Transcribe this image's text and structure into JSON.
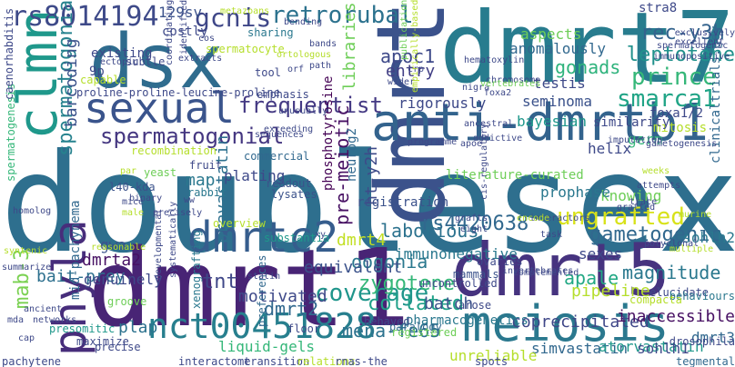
{
  "palette": [
    "#440154",
    "#482878",
    "#3e4989",
    "#31688e",
    "#26828e",
    "#1f9e89",
    "#35b779",
    "#6ece58",
    "#b5de2b",
    "#fde725"
  ],
  "words": [
    {
      "text": "doublesex",
      "color": "#2e6f8e"
    },
    {
      "text": "dmrt1",
      "color": "#482475"
    },
    {
      "text": "dmrt7",
      "color": "#287c8e"
    },
    {
      "text": "dsx",
      "color": "#2f6c8e"
    },
    {
      "text": "dmrt5",
      "color": "#46337f"
    },
    {
      "text": "dmrt",
      "color": "#3b528b"
    },
    {
      "text": "anti-dmrtb1",
      "color": "#33638d"
    },
    {
      "text": "meiosis",
      "color": "#2a788e"
    },
    {
      "text": "sexual",
      "color": "#3a548c"
    },
    {
      "text": "clmn",
      "color": "#1f988b"
    },
    {
      "text": "phyla",
      "color": "#472d7b"
    },
    {
      "text": "dmrtc2",
      "color": "#365d8d"
    },
    {
      "text": "nct00451828",
      "color": "#277f8e"
    },
    {
      "text": "rs8014194",
      "color": "#3e4a89"
    },
    {
      "text": "gcnis",
      "color": "#3f4788"
    },
    {
      "text": "retrorubal",
      "color": "#2c728e"
    },
    {
      "text": "prince",
      "color": "#35b779"
    },
    {
      "text": "smarca1",
      "color": "#20a486"
    },
    {
      "text": "ungrafted",
      "color": "#d8e219"
    },
    {
      "text": "coverage",
      "color": "#1f958b"
    },
    {
      "text": "frequentist",
      "color": "#443983"
    },
    {
      "text": "spermatogonial",
      "color": "#453781"
    },
    {
      "text": "mab-3",
      "color": "#7ad151"
    },
    {
      "text": "leptotene",
      "color": "#21918c"
    },
    {
      "text": "rec-y3h",
      "color": "#33638d"
    },
    {
      "text": "spermatogonia",
      "color": "#26828e"
    },
    {
      "text": "129sv",
      "color": "#3b528b"
    },
    {
      "text": "apoc1",
      "color": "#3e4989"
    },
    {
      "text": "entry",
      "color": "#423f85"
    },
    {
      "text": "gonads",
      "color": "#2eb37c"
    },
    {
      "text": "zygotene",
      "color": "#35b779"
    },
    {
      "text": "gametogenic",
      "color": "#31688e"
    },
    {
      "text": "pre-meiotic",
      "color": "#471063"
    },
    {
      "text": "pravastatin",
      "color": "#2d708e"
    },
    {
      "text": "rs4420638",
      "color": "#31688e"
    },
    {
      "text": "laborious",
      "color": "#2c728e"
    },
    {
      "text": "collated",
      "color": "#1fa088"
    },
    {
      "text": "apale",
      "color": "#22a884"
    },
    {
      "text": "magnitude",
      "color": "#2a788e"
    },
    {
      "text": "plap",
      "color": "#2c728e"
    },
    {
      "text": "mena-fe65",
      "color": "#2c728e"
    },
    {
      "text": "tnt",
      "color": "#3f4788"
    },
    {
      "text": "dmrt2",
      "color": "#31688e"
    },
    {
      "text": "barcoding",
      "color": "#3b528b"
    },
    {
      "text": "ht-y2h",
      "color": "#3e4a89"
    },
    {
      "text": "dmrta2",
      "color": "#471164"
    },
    {
      "text": "bait-prey",
      "color": "#2d708e"
    },
    {
      "text": "dmrt4",
      "color": "#c2df23"
    },
    {
      "text": "oogonia",
      "color": "#2a788e"
    },
    {
      "text": "genuinely",
      "color": "#3e4989"
    },
    {
      "text": "equivalent",
      "color": "#3b528b"
    },
    {
      "text": "immunonegative",
      "color": "#2a788e"
    },
    {
      "text": "sexes",
      "color": "#3e4989"
    },
    {
      "text": "pipeline",
      "color": "#b5de2b"
    },
    {
      "text": "motivated",
      "color": "#3e4989"
    },
    {
      "text": "mid-pachynema",
      "color": "#31688e"
    },
    {
      "text": "liquid-gels",
      "color": "#35b779"
    },
    {
      "text": "batch",
      "color": "#3b528b"
    },
    {
      "text": "coprecipitated",
      "color": "#3f4788"
    },
    {
      "text": "inaccessible",
      "color": "#471063"
    },
    {
      "text": "pharmacogenetics",
      "color": "#2a788e"
    },
    {
      "text": "simvastatin",
      "color": "#31688e"
    },
    {
      "text": "atorvastatin",
      "color": "#1f988b"
    },
    {
      "text": "unreliable",
      "color": "#b5de2b"
    },
    {
      "text": "sohlh2",
      "color": "#2a788e"
    },
    {
      "text": "sohlh1",
      "color": "#3e4989"
    },
    {
      "text": "dmrt3",
      "color": "#31688e"
    },
    {
      "text": "gwa",
      "color": "#3b528b"
    },
    {
      "text": "testis",
      "color": "#3e4989"
    },
    {
      "text": "seminoma",
      "color": "#3b528b"
    },
    {
      "text": "germ",
      "color": "#35b779"
    },
    {
      "text": "helix",
      "color": "#3e4989"
    },
    {
      "text": "foxa1/2",
      "color": "#3e4989"
    },
    {
      "text": "mitosis",
      "color": "#b5de2b"
    },
    {
      "text": "similarity",
      "color": "#3e4989"
    },
    {
      "text": "bayesian",
      "color": "#1f988b"
    },
    {
      "text": "knowing",
      "color": "#6ece58"
    },
    {
      "text": "prophase",
      "color": "#2a788e"
    },
    {
      "text": "clinicaltrials.gov",
      "color": "#31688e"
    },
    {
      "text": "aspects",
      "color": "#6ece58"
    },
    {
      "text": "anomalously",
      "color": "#31688e"
    },
    {
      "text": "libraries",
      "color": "#6ece58"
    },
    {
      "text": "map",
      "color": "#2a788e"
    },
    {
      "text": "plating",
      "color": "#3e4989"
    },
    {
      "text": "rigorously",
      "color": "#3e4989"
    },
    {
      "text": "literature-curated",
      "color": "#6ece58"
    },
    {
      "text": "registration",
      "color": "#3b528b"
    },
    {
      "text": "neurog2",
      "color": "#31688e"
    },
    {
      "text": "phosphotyrosine",
      "color": "#440154"
    },
    {
      "text": "stra8",
      "color": "#3e4989"
    },
    {
      "text": "existing",
      "color": "#3e4989"
    },
    {
      "text": "costly",
      "color": "#3e4989"
    },
    {
      "text": "sharing",
      "color": "#2a788e"
    },
    {
      "text": "spermatocyte",
      "color": "#b5de2b"
    },
    {
      "text": "9p",
      "color": "#3e4989"
    },
    {
      "text": "spermatogenesis",
      "color": "#35b779"
    },
    {
      "text": "recombination",
      "color": "#b5de2b"
    },
    {
      "text": "l40-kda",
      "color": "#3b528b"
    },
    {
      "text": "rabbit",
      "color": "#2a788e"
    },
    {
      "text": "yeast",
      "color": "#6ece58"
    },
    {
      "text": "fruit",
      "color": "#3e4989"
    },
    {
      "text": "commercial",
      "color": "#31688e"
    },
    {
      "text": "emphasis",
      "color": "#3e4989"
    },
    {
      "text": "readout",
      "color": "#3b528b"
    },
    {
      "text": "lysates",
      "color": "#3b528b"
    },
    {
      "text": "overview",
      "color": "#b5de2b"
    },
    {
      "text": "substantia",
      "color": "#1f988b"
    },
    {
      "text": "uncontrolled",
      "color": "#3e4989"
    },
    {
      "text": "mammals",
      "color": "#3b528b"
    },
    {
      "text": "ovaries",
      "color": "#3e4989"
    },
    {
      "text": "arose",
      "color": "#3e4989"
    },
    {
      "text": "elucidate",
      "color": "#3e4989"
    },
    {
      "text": "behaviours",
      "color": "#2a788e"
    },
    {
      "text": "compacta",
      "color": "#b5de2b"
    },
    {
      "text": "behaved",
      "color": "#3e4989"
    },
    {
      "text": "paralogy",
      "color": "#31688e"
    },
    {
      "text": "registered",
      "color": "#6ece58"
    },
    {
      "text": "xenografting",
      "color": "#2a788e"
    },
    {
      "text": "preferences",
      "color": "#31688e"
    },
    {
      "text": "floor",
      "color": "#3e4989"
    },
    {
      "text": "groove",
      "color": "#6ece58"
    },
    {
      "text": "presomitic",
      "color": "#1f988b"
    },
    {
      "text": "maximize",
      "color": "#3e4989"
    },
    {
      "text": "pachytene",
      "color": "#3e4989"
    },
    {
      "text": "interactome",
      "color": "#3e4989"
    },
    {
      "text": "transition",
      "color": "#3e4989"
    },
    {
      "text": "relations",
      "color": "#b5de2b"
    },
    {
      "text": "rnas-the",
      "color": "#3e4989"
    },
    {
      "text": "spots",
      "color": "#3e4989"
    },
    {
      "text": "tegmental",
      "color": "#31688e"
    },
    {
      "text": "drosophila",
      "color": "#3e4989"
    },
    {
      "text": "precise",
      "color": "#3e4989"
    },
    {
      "text": "subtle",
      "color": "#3e4989"
    },
    {
      "text": "proline-proline-leucine-proline",
      "color": "#3e4989"
    },
    {
      "text": "capable",
      "color": "#b5de2b"
    },
    {
      "text": "caenorhabditis",
      "color": "#3e4989"
    },
    {
      "text": "metazoans",
      "color": "#b5de2b"
    },
    {
      "text": "bending",
      "color": "#3e4989"
    },
    {
      "text": "bands",
      "color": "#3e4989"
    },
    {
      "text": "path",
      "color": "#3e4989"
    },
    {
      "text": "tool",
      "color": "#3e4989"
    },
    {
      "text": "cos",
      "color": "#3e4989"
    },
    {
      "text": "ortologous",
      "color": "#b5de2b"
    },
    {
      "text": "hematoxylin",
      "color": "#3e4989"
    },
    {
      "text": "chromosome",
      "color": "#3e4989"
    },
    {
      "text": "crp",
      "color": "#3e4989"
    },
    {
      "text": "wider",
      "color": "#3e4989"
    },
    {
      "text": "foxa2",
      "color": "#3e4989"
    },
    {
      "text": "nigra",
      "color": "#3e4989"
    },
    {
      "text": "vertebrates",
      "color": "#6ece58"
    },
    {
      "text": "addictive",
      "color": "#3e4989"
    },
    {
      "text": "ancestral",
      "color": "#3e4989"
    },
    {
      "text": "apoe",
      "color": "#3e4989"
    },
    {
      "text": "programme",
      "color": "#3e4989"
    },
    {
      "text": "imputation",
      "color": "#3e4989"
    },
    {
      "text": "gametogenesis",
      "color": "#3e4989"
    },
    {
      "text": "immunopositive",
      "color": "#3e4989"
    },
    {
      "text": "exclusively",
      "color": "#3e4989"
    },
    {
      "text": "excellent",
      "color": "#3e4989"
    },
    {
      "text": "spermatogenic",
      "color": "#3e4989"
    },
    {
      "text": "empirically-based",
      "color": "#b5de2b"
    },
    {
      "text": "publication",
      "color": "#6ece58"
    },
    {
      "text": "weeks",
      "color": "#b5de2b"
    },
    {
      "text": "attempts",
      "color": "#3e4989"
    },
    {
      "text": "trace",
      "color": "#3e4989"
    },
    {
      "text": "grafted",
      "color": "#3e4989"
    },
    {
      "text": "murine",
      "color": "#b5de2b"
    },
    {
      "text": "polyclonal",
      "color": "#3e4989"
    },
    {
      "text": "interactors",
      "color": "#3e4989"
    },
    {
      "text": "encode",
      "color": "#b5de2b"
    },
    {
      "text": "multiple",
      "color": "#b5de2b"
    },
    {
      "text": "task",
      "color": "#3e4989"
    },
    {
      "text": "invertebrates",
      "color": "#3e4989"
    },
    {
      "text": "complemented",
      "color": "#3e4989"
    },
    {
      "text": "xy",
      "color": "#3e4989"
    },
    {
      "text": "ancient",
      "color": "#3e4989"
    },
    {
      "text": "networks",
      "color": "#3e4989"
    },
    {
      "text": "cap",
      "color": "#3e4989"
    },
    {
      "text": "mda",
      "color": "#3e4989"
    },
    {
      "text": "homolog",
      "color": "#3e4989"
    },
    {
      "text": "syntenic",
      "color": "#b5de2b"
    },
    {
      "text": "summarize",
      "color": "#3e4989"
    },
    {
      "text": "reasonable",
      "color": "#b5de2b"
    },
    {
      "text": "binary",
      "color": "#3e4989"
    },
    {
      "text": "mice",
      "color": "#3e4989"
    },
    {
      "text": "male",
      "color": "#b5de2b"
    },
    {
      "text": "precisely",
      "color": "#3e4989"
    },
    {
      "text": "ww",
      "color": "#3e4989"
    },
    {
      "text": "par",
      "color": "#b5de2b"
    },
    {
      "text": "statin",
      "color": "#3e4989"
    },
    {
      "text": "developmental",
      "color": "#3e4989"
    },
    {
      "text": "systematically",
      "color": "#3e4989"
    },
    {
      "text": "exceeding",
      "color": "#3e4989"
    },
    {
      "text": "sequences",
      "color": "#3e4989"
    },
    {
      "text": "unusually",
      "color": "#3e4989"
    },
    {
      "text": "ectopic",
      "color": "#3e4989"
    },
    {
      "text": "extracts",
      "color": "#3e4989"
    },
    {
      "text": "coordinating",
      "color": "#3e4989"
    },
    {
      "text": "identified",
      "color": "#3e4989"
    },
    {
      "text": "orf",
      "color": "#3e4989"
    },
    {
      "text": "cis-regulatory",
      "color": "#3e4989"
    },
    {
      "text": "grafts",
      "color": "#3e4989"
    },
    {
      "text": "eight",
      "color": "#3e4989"
    }
  ]
}
